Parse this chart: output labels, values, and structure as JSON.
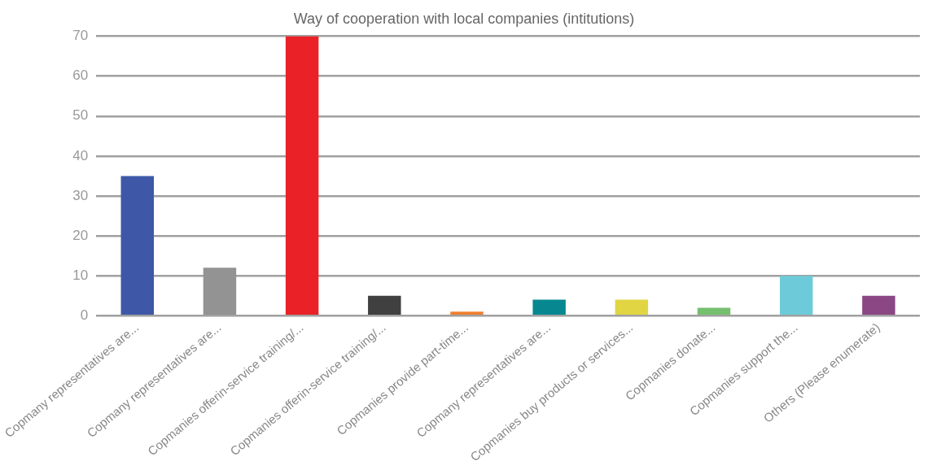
{
  "chart_data": {
    "type": "bar",
    "title": "Way of cooperation with local companies (intitutions)",
    "categories": [
      "Copmany representatives are...",
      "Copmany representatives are...",
      "Copmanies offerin-service training/...",
      "Copmanies offerin-service training/...",
      "Copmanies provide part-time...",
      "Copmany representatives are...",
      "Copmanies buy products or services...",
      "Copmanies donate...",
      "Copmanies support the...",
      "Others (Please enumerate)"
    ],
    "values": [
      35,
      12,
      70,
      5,
      1,
      4,
      4,
      2,
      10,
      5
    ],
    "colors": [
      "#3e58a7",
      "#939393",
      "#ea2127",
      "#404040",
      "#ef8030",
      "#078890",
      "#e1d544",
      "#75bf6f",
      "#6dcbd9",
      "#8b4784"
    ],
    "ylim": [
      0,
      70
    ],
    "yticks": [
      0,
      10,
      20,
      30,
      40,
      50,
      60,
      70
    ],
    "grid": "y"
  }
}
